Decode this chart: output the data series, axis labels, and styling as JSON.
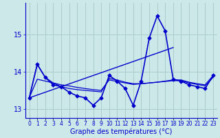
{
  "xlabel": "Graphe des températures (°C)",
  "background_color": "#cce8e8",
  "grid_color": "#aacccc",
  "line_color": "#0000cc",
  "x_hours": [
    0,
    1,
    2,
    3,
    4,
    5,
    6,
    7,
    8,
    9,
    10,
    11,
    12,
    13,
    14,
    15,
    16,
    17,
    18,
    19,
    20,
    21,
    22,
    23
  ],
  "zigzag": [
    13.3,
    14.2,
    13.85,
    13.65,
    13.6,
    13.45,
    13.35,
    13.3,
    13.1,
    13.3,
    13.9,
    13.75,
    13.55,
    13.1,
    13.75,
    14.9,
    15.5,
    15.1,
    13.8,
    13.75,
    13.65,
    13.6,
    13.55,
    13.9
  ],
  "flat1": [
    13.3,
    14.2,
    13.85,
    13.7,
    13.6,
    13.55,
    13.52,
    13.5,
    13.48,
    13.46,
    13.82,
    13.78,
    13.72,
    13.68,
    13.68,
    13.7,
    13.72,
    13.75,
    13.78,
    13.78,
    13.72,
    13.68,
    13.65,
    13.9
  ],
  "flat2": [
    13.3,
    13.8,
    13.75,
    13.7,
    13.65,
    13.62,
    13.58,
    13.55,
    13.52,
    13.5,
    13.78,
    13.74,
    13.7,
    13.66,
    13.68,
    13.7,
    13.72,
    13.74,
    13.76,
    13.76,
    13.7,
    13.66,
    13.62,
    13.85
  ],
  "ylim": [
    12.75,
    15.85
  ],
  "yticks": [
    13,
    14,
    15
  ],
  "xlim": [
    -0.5,
    23.5
  ]
}
